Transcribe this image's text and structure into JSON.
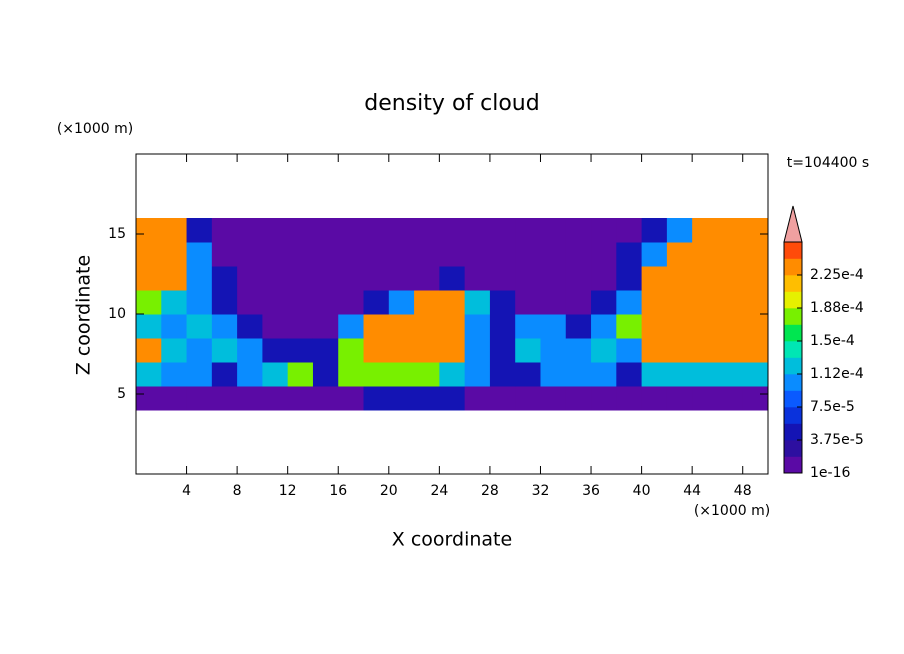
{
  "chart_data": {
    "type": "contour",
    "title": "density of cloud",
    "annotation": "t=104400 s",
    "x_label": "X coordinate",
    "y_label": "Z coordinate",
    "x_unit": "(×1000 m)",
    "y_unit": "(×1000 m)",
    "xlim": [
      0,
      50
    ],
    "ylim": [
      0,
      20
    ],
    "xticks": [
      4,
      8,
      12,
      16,
      20,
      24,
      28,
      32,
      36,
      40,
      44,
      48
    ],
    "yticks": [
      5,
      10,
      15
    ],
    "xbins": [
      0,
      2,
      4,
      6,
      8,
      10,
      12,
      14,
      16,
      18,
      20,
      22,
      24,
      26,
      28,
      30,
      32,
      34,
      36,
      38,
      40,
      42,
      44,
      46,
      48,
      50
    ],
    "zbins": [
      4,
      5.5,
      7,
      8.5,
      10,
      11.5,
      13,
      14.5,
      16
    ],
    "values": [
      [
        1e-05,
        1e-05,
        1e-05,
        1e-05,
        1e-05,
        1e-05,
        1e-05,
        1e-05,
        1e-05,
        4e-05,
        4e-05,
        4e-05,
        4e-05,
        1e-05,
        1e-05,
        1e-05,
        1e-05,
        1e-05,
        1e-05,
        1e-05,
        1e-05,
        1e-05,
        1e-05,
        1e-05,
        1e-05
      ],
      [
        0.00013,
        0.0001,
        0.0001,
        4e-05,
        0.0001,
        0.00013,
        0.00017,
        4e-05,
        0.00017,
        0.00017,
        0.00017,
        0.00017,
        0.00013,
        0.0001,
        4e-05,
        4e-05,
        0.0001,
        0.0001,
        0.0001,
        4e-05,
        0.00013,
        0.00013,
        0.00013,
        0.00013,
        0.00013
      ],
      [
        0.00024,
        0.00013,
        0.0001,
        0.00013,
        0.0001,
        4e-05,
        4e-05,
        4e-05,
        0.00017,
        0.00024,
        0.00024,
        0.00024,
        0.00024,
        0.0001,
        4e-05,
        0.00013,
        0.0001,
        0.0001,
        0.00013,
        0.0001,
        0.00024,
        0.00024,
        0.00024,
        0.00024,
        0.00024
      ],
      [
        0.00013,
        0.0001,
        0.00013,
        0.0001,
        4e-05,
        1e-05,
        1e-05,
        1e-05,
        0.0001,
        0.00024,
        0.00024,
        0.00024,
        0.00024,
        0.0001,
        4e-05,
        0.0001,
        0.0001,
        4e-05,
        0.0001,
        0.00017,
        0.00024,
        0.00024,
        0.00024,
        0.00024,
        0.00024
      ],
      [
        0.00017,
        0.00013,
        0.0001,
        4e-05,
        1e-05,
        1e-05,
        1e-05,
        1e-05,
        1e-05,
        4e-05,
        0.0001,
        0.00024,
        0.00024,
        0.00013,
        4e-05,
        1e-05,
        1e-05,
        1e-05,
        4e-05,
        0.0001,
        0.00024,
        0.00024,
        0.00024,
        0.00024,
        0.00024
      ],
      [
        0.00024,
        0.00024,
        0.0001,
        4e-05,
        1e-05,
        1e-05,
        1e-05,
        1e-05,
        1e-05,
        1e-05,
        1e-05,
        1e-05,
        4e-05,
        1e-05,
        1e-05,
        1e-05,
        1e-05,
        1e-05,
        1e-05,
        4e-05,
        0.00024,
        0.00024,
        0.00024,
        0.00024,
        0.00024
      ],
      [
        0.00024,
        0.00024,
        0.0001,
        1e-05,
        1e-05,
        1e-05,
        1e-05,
        1e-05,
        1e-05,
        1e-05,
        1e-05,
        1e-05,
        1e-05,
        1e-05,
        1e-05,
        1e-05,
        1e-05,
        1e-05,
        1e-05,
        4e-05,
        0.0001,
        0.00024,
        0.00024,
        0.00024,
        0.00024
      ],
      [
        0.00024,
        0.00024,
        4e-05,
        1e-05,
        1e-05,
        1e-05,
        1e-05,
        1e-05,
        1e-05,
        1e-05,
        1e-05,
        1e-05,
        1e-05,
        1e-05,
        1e-05,
        1e-05,
        1e-05,
        1e-05,
        1e-05,
        1e-05,
        4e-05,
        0.0001,
        0.00024,
        0.00024,
        0.00024
      ]
    ],
    "levels": [
      1e-16,
      1.875e-05,
      3.75e-05,
      5.625e-05,
      7.5e-05,
      9.375e-05,
      0.0001125,
      0.00013125,
      0.00015,
      0.00016875,
      0.0001875,
      0.00020625,
      0.000225,
      0.00024375,
      0.0002625
    ],
    "colors": [
      "#5a0aa5",
      "#2d0fa0",
      "#1414b4",
      "#0a32dc",
      "#0a5aff",
      "#0a8cff",
      "#00bedc",
      "#00e6b4",
      "#00e650",
      "#78f000",
      "#e6f000",
      "#ffbe00",
      "#ff8c00",
      "#ff4b0a"
    ],
    "over_color": "#f0a0a0",
    "colorbar_ticks": [
      {
        "value": 1e-16,
        "label": "1e-16"
      },
      {
        "value": 3.75e-05,
        "label": "3.75e-5"
      },
      {
        "value": 7.5e-05,
        "label": "7.5e-5"
      },
      {
        "value": 0.0001125,
        "label": "1.12e-4"
      },
      {
        "value": 0.00015,
        "label": "1.5e-4"
      },
      {
        "value": 0.0001875,
        "label": "1.88e-4"
      },
      {
        "value": 0.000225,
        "label": "2.25e-4"
      }
    ]
  }
}
